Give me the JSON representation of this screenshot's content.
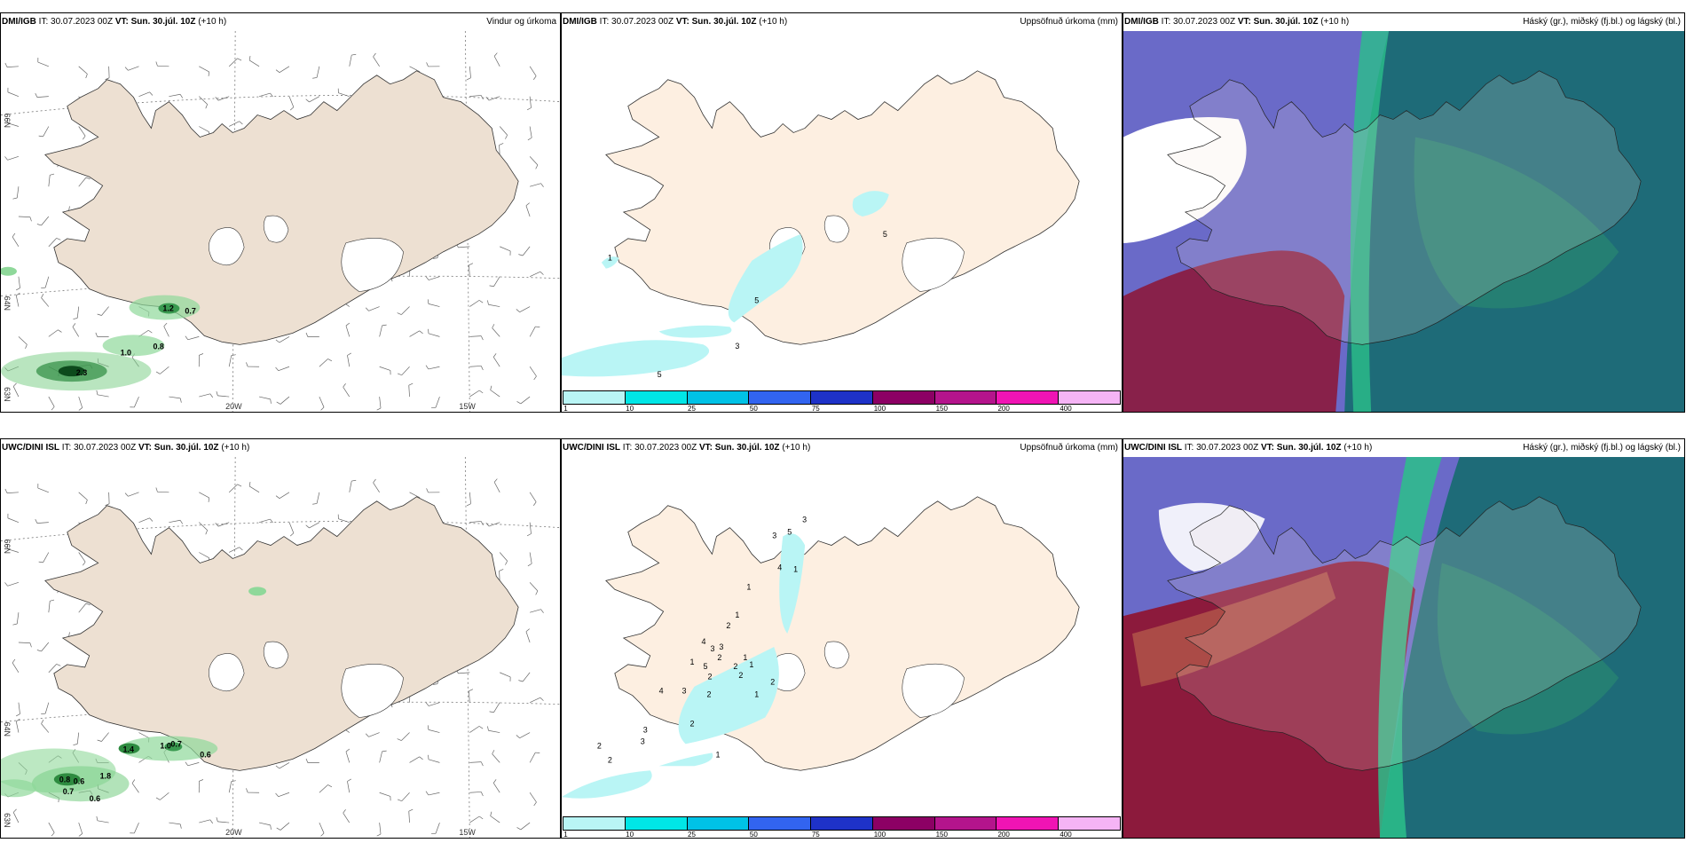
{
  "panels": [
    {
      "id": "p1",
      "model": "DMI/IGB",
      "it": "IT: 30.07.2023 00Z",
      "vt_label": "VT: Sun. 30.júl. 10Z",
      "lead": "(+10 h)",
      "title": "Vindur og úrkoma",
      "precip_labels": [
        "1.2",
        "0.7",
        "1.0",
        "0.8",
        "2.3"
      ],
      "axis": {
        "lat1": "66N",
        "lat2": "64N",
        "lat3": "63N",
        "lon1": "20W",
        "lon2": "15W"
      }
    },
    {
      "id": "p2",
      "model": "DMI/IGB",
      "it": "IT: 30.07.2023 00Z",
      "vt_label": "VT: Sun. 30.júl. 10Z",
      "lead": "(+10 h)",
      "title": "Uppsöfnuð úrkoma (mm)",
      "accum_labels": [
        "1",
        "5",
        "3",
        "5",
        "5"
      ]
    },
    {
      "id": "p3",
      "model": "DMI/IGB",
      "it": "IT: 30.07.2023 00Z",
      "vt_label": "VT: Sun. 30.júl. 10Z",
      "lead": "(+10 h)",
      "title": "Háský (gr.), miðský (fj.bl.) og lágský (bl.)"
    },
    {
      "id": "p4",
      "model": "UWC/DINI ISL",
      "it": "IT: 30.07.2023 00Z",
      "vt_label": "VT: Sun. 30.júl. 10Z",
      "lead": "(+10 h)",
      "title": "",
      "precip_labels": [
        "1.4",
        "1.0",
        "0.7",
        "0.6",
        "0.8",
        "0.6",
        "1.8",
        "0.7",
        "0.6"
      ],
      "axis": {
        "lat1": "66N",
        "lat2": "64N",
        "lat3": "63N",
        "lon1": "20W",
        "lon2": "15W"
      }
    },
    {
      "id": "p5",
      "model": "UWC/DINI ISL",
      "it": "IT: 30.07.2023 00Z",
      "vt_label": "VT: Sun. 30.júl. 10Z",
      "lead": "(+10 h)",
      "title": "Uppsöfnuð úrkoma (mm)",
      "accum_labels": [
        "3",
        "5",
        "3",
        "4",
        "1",
        "1",
        "1",
        "2",
        "4",
        "3",
        "3",
        "1",
        "2",
        "5",
        "2",
        "1",
        "1",
        "2",
        "2",
        "4",
        "3",
        "2",
        "1",
        "2",
        "2",
        "3",
        "3",
        "2",
        "2",
        "1"
      ]
    },
    {
      "id": "p6",
      "model": "UWC/DINI ISL",
      "it": "IT: 30.07.2023 00Z",
      "vt_label": "VT: Sun. 30.júl. 10Z",
      "lead": "(+10 h)",
      "title": "Háský (gr.), miðský (fj.bl.) og lágský (bl.)"
    }
  ],
  "colorbar": {
    "colors": [
      "#b9f5f5",
      "#00e6e6",
      "#00c2e6",
      "#3264f0",
      "#1e32c8",
      "#8c0064",
      "#b4148c",
      "#f014b4",
      "#f5b4f5"
    ],
    "ticks": [
      "1",
      "10",
      "25",
      "50",
      "75",
      "100",
      "150",
      "200",
      "400"
    ]
  },
  "colors": {
    "land": "#f5e6d8",
    "land_wind": "#ede0d2",
    "cloud_high": "#6a6ac8",
    "cloud_low": "#8c1a3c",
    "cloud_mid": "#1e6b78",
    "cloud_green": "#2bbf8a"
  }
}
